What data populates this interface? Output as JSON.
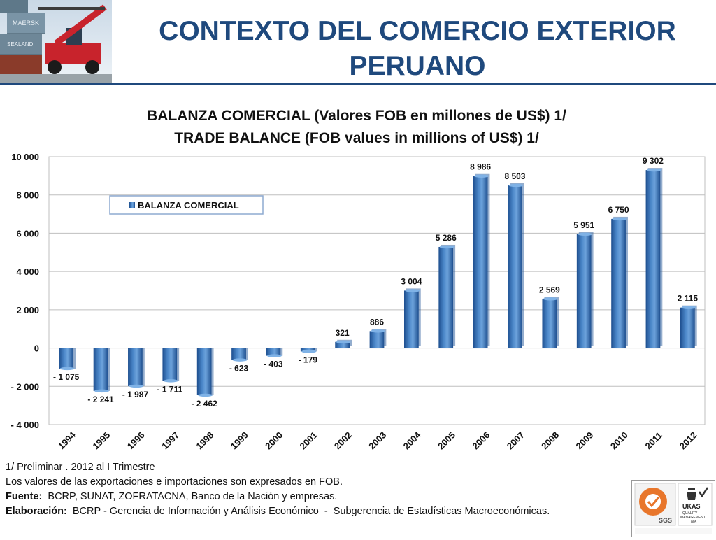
{
  "slide": {
    "title_line1": "CONTEXTO DEL COMERCIO EXTERIOR",
    "title_line2": "PERUANO"
  },
  "photo": {
    "container_text_1": "MAERSK",
    "container_text_2": "SEALAND"
  },
  "chart_data": {
    "type": "bar",
    "title_line1": "BALANZA  COMERCIAL (Valores FOB en millones de US$) 1/",
    "title_line2": "TRADE BALANCE (FOB values in millions of US$) 1/",
    "categories": [
      "1994",
      "1995",
      "1996",
      "1997",
      "1998",
      "1999",
      "2000",
      "2001",
      "2002",
      "2003",
      "2004",
      "2005",
      "2006",
      "2007",
      "2008",
      "2009",
      "2010",
      "2011",
      "2012"
    ],
    "series": [
      {
        "name": "BALANZA  COMERCIAL",
        "values": [
          -1075,
          -2241,
          -1987,
          -1711,
          -2462,
          -623,
          -403,
          -179,
          321,
          886,
          3004,
          5286,
          8986,
          8503,
          2569,
          5951,
          6750,
          9302,
          2115
        ],
        "labels": [
          "- 1 075",
          "- 2 241",
          "- 1 987",
          "- 1 711",
          "- 2 462",
          "-  623",
          "-  403",
          "-  179",
          "321",
          "886",
          "3 004",
          "5 286",
          "8 986",
          "8 503",
          "2 569",
          "5 951",
          "6 750",
          "9 302",
          "2 115"
        ]
      }
    ],
    "ylim": [
      -4000,
      10000
    ],
    "yticks": [
      10000,
      8000,
      6000,
      4000,
      2000,
      0,
      -2000,
      -4000
    ],
    "ytick_labels": [
      "10 000",
      "8 000",
      "6 000",
      "4 000",
      "2 000",
      "0",
      "- 2 000",
      "- 4 000"
    ],
    "grid": true,
    "legend_position": "top-left",
    "bar_color": "#4a86c8",
    "bar_color_dark": "#1e4f8f"
  },
  "footnotes": {
    "line1": "1/  Preliminar . 2012 al I Trimestre",
    "line2": "Los valores de las exportaciones e importaciones son expresados en FOB.",
    "line3_label": "Fuente:",
    "line3_text": "  BCRP, SUNAT, ZOFRATACNA, Banco de la Nación y empresas.",
    "line4_label": "Elaboración:",
    "line4_text": "  BCRP - Gerencia de Información y Análisis Económico  -  Subgerencia de Estadísticas Macroeconómicas."
  },
  "certification": {
    "left_logo": "SGS",
    "right_logo_1": "UKAS",
    "right_logo_2": "QUALITY",
    "right_logo_3": "MANAGEMENT",
    "right_logo_4": "005"
  },
  "colors": {
    "title": "#1f497d",
    "gridline": "#bfbfbf"
  }
}
